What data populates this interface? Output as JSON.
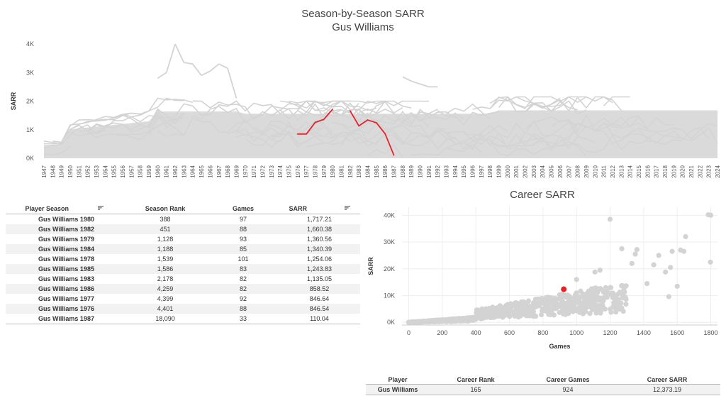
{
  "header": {
    "title": "Season-by-Season SARR",
    "subtitle": "Gus Williams"
  },
  "colors": {
    "highlight": "#e8222b",
    "background_lines": "#d3d3d3",
    "grid": "#eeeeee"
  },
  "chart_data": [
    {
      "type": "line",
      "title": "Season-by-Season SARR",
      "subtitle": "Gus Williams",
      "xlabel": "",
      "ylabel": "SARR",
      "x_years": [
        1947,
        1948,
        1949,
        1950,
        1951,
        1952,
        1953,
        1954,
        1955,
        1956,
        1957,
        1958,
        1959,
        1960,
        1961,
        1962,
        1963,
        1964,
        1965,
        1966,
        1967,
        1968,
        1969,
        1970,
        1971,
        1972,
        1973,
        1974,
        1975,
        1976,
        1977,
        1978,
        1979,
        1980,
        1981,
        1982,
        1983,
        1984,
        1985,
        1986,
        1987,
        1988,
        1989,
        1990,
        1991,
        1992,
        1993,
        1994,
        1995,
        1996,
        1997,
        1998,
        1999,
        2000,
        2001,
        2002,
        2003,
        2004,
        2005,
        2006,
        2007,
        2008,
        2009,
        2010,
        2011,
        2012,
        2013,
        2014,
        2015,
        2016,
        2017,
        2018,
        2019,
        2020,
        2021,
        2022,
        2023,
        2024
      ],
      "yticks": [
        0,
        1000,
        2000,
        3000,
        4000
      ],
      "ytick_labels": [
        "0K",
        "1K",
        "2K",
        "3K",
        "4K"
      ],
      "ylim": [
        0,
        4000
      ],
      "highlight_series": {
        "name": "Gus Williams",
        "points": [
          {
            "x": 1976,
            "y": 847
          },
          {
            "x": 1977,
            "y": 847
          },
          {
            "x": 1978,
            "y": 1254
          },
          {
            "x": 1979,
            "y": 1361
          },
          {
            "x": 1980,
            "y": 1717
          },
          {
            "x": 1982,
            "y": 1660
          },
          {
            "x": 1983,
            "y": 1135
          },
          {
            "x": 1984,
            "y": 1340
          },
          {
            "x": 1985,
            "y": 1244
          },
          {
            "x": 1986,
            "y": 859
          },
          {
            "x": 1987,
            "y": 110
          }
        ]
      },
      "background_peaks": [
        {
          "x": 1960,
          "y": 2800
        },
        {
          "x": 1961,
          "y": 3000
        },
        {
          "x": 1962,
          "y": 4000
        },
        {
          "x": 1963,
          "y": 3350
        },
        {
          "x": 1964,
          "y": 3300
        },
        {
          "x": 1965,
          "y": 2900
        },
        {
          "x": 1966,
          "y": 3050
        },
        {
          "x": 1967,
          "y": 3300
        },
        {
          "x": 1968,
          "y": 3150
        },
        {
          "x": 1969,
          "y": 2100
        },
        {
          "x": 1988,
          "y": 2850
        },
        {
          "x": 1989,
          "y": 2700
        },
        {
          "x": 1990,
          "y": 2600
        },
        {
          "x": 1991,
          "y": 2500
        },
        {
          "x": 1992,
          "y": 2500
        }
      ],
      "grid": false
    },
    {
      "type": "scatter",
      "title": "Career SARR",
      "xlabel": "Games",
      "ylabel": "SARR",
      "xticks": [
        0,
        200,
        400,
        600,
        800,
        1000,
        1200,
        1400,
        1600,
        1800
      ],
      "yticks": [
        0,
        10000,
        20000,
        30000,
        40000
      ],
      "ytick_labels": [
        "0K",
        "10K",
        "20K",
        "30K",
        "40K"
      ],
      "xlim": [
        -40,
        1840
      ],
      "ylim": [
        -1000,
        43000
      ],
      "highlight_point": {
        "name": "Gus Williams",
        "x": 924,
        "y": 12373.19
      },
      "outliers": [
        {
          "x": 1200,
          "y": 38500
        },
        {
          "x": 1785,
          "y": 40200
        },
        {
          "x": 1800,
          "y": 40000
        },
        {
          "x": 1798,
          "y": 22500
        },
        {
          "x": 1650,
          "y": 32000
        },
        {
          "x": 1620,
          "y": 27000
        },
        {
          "x": 1640,
          "y": 26500
        },
        {
          "x": 1570,
          "y": 26500
        },
        {
          "x": 1560,
          "y": 20500
        },
        {
          "x": 1490,
          "y": 25000
        },
        {
          "x": 1530,
          "y": 18800
        },
        {
          "x": 1550,
          "y": 9600
        },
        {
          "x": 1460,
          "y": 21500
        },
        {
          "x": 1350,
          "y": 25500
        },
        {
          "x": 1360,
          "y": 27200
        },
        {
          "x": 1270,
          "y": 27500
        },
        {
          "x": 1420,
          "y": 14500
        },
        {
          "x": 1110,
          "y": 18800
        },
        {
          "x": 1140,
          "y": 19500
        },
        {
          "x": 1000,
          "y": 16000
        },
        {
          "x": 1600,
          "y": 13500
        },
        {
          "x": 1330,
          "y": 22000
        }
      ],
      "grid": true
    }
  ],
  "season_table": {
    "headers": {
      "player_season": "Player Season",
      "season_rank": "Season Rank",
      "games": "Games",
      "sarr": "SARR"
    },
    "rows": [
      {
        "player_season": "Gus Williams 1980",
        "season_rank": "388",
        "games": "97",
        "sarr": "1,717.21"
      },
      {
        "player_season": "Gus Williams 1982",
        "season_rank": "451",
        "games": "88",
        "sarr": "1,660.38"
      },
      {
        "player_season": "Gus Williams 1979",
        "season_rank": "1,128",
        "games": "93",
        "sarr": "1,360.56"
      },
      {
        "player_season": "Gus Williams 1984",
        "season_rank": "1,188",
        "games": "85",
        "sarr": "1,340.39"
      },
      {
        "player_season": "Gus Williams 1978",
        "season_rank": "1,539",
        "games": "101",
        "sarr": "1,254.06"
      },
      {
        "player_season": "Gus Williams 1985",
        "season_rank": "1,586",
        "games": "83",
        "sarr": "1,243.83"
      },
      {
        "player_season": "Gus Williams 1983",
        "season_rank": "2,178",
        "games": "82",
        "sarr": "1,135.05"
      },
      {
        "player_season": "Gus Williams 1986",
        "season_rank": "4,259",
        "games": "82",
        "sarr": "858.52"
      },
      {
        "player_season": "Gus Williams 1977",
        "season_rank": "4,399",
        "games": "92",
        "sarr": "846.64"
      },
      {
        "player_season": "Gus Williams 1976",
        "season_rank": "4,401",
        "games": "88",
        "sarr": "846.54"
      },
      {
        "player_season": "Gus Williams 1987",
        "season_rank": "18,090",
        "games": "33",
        "sarr": "110.04"
      }
    ],
    "sort_icon": "sort-descending-icon"
  },
  "career_table": {
    "headers": {
      "player": "Player",
      "career_rank": "Career Rank",
      "career_games": "Career Games",
      "career_sarr": "Career SARR"
    },
    "row": {
      "player": "Gus Williams",
      "career_rank": "165",
      "career_games": "924",
      "career_sarr": "12,373.19"
    }
  }
}
